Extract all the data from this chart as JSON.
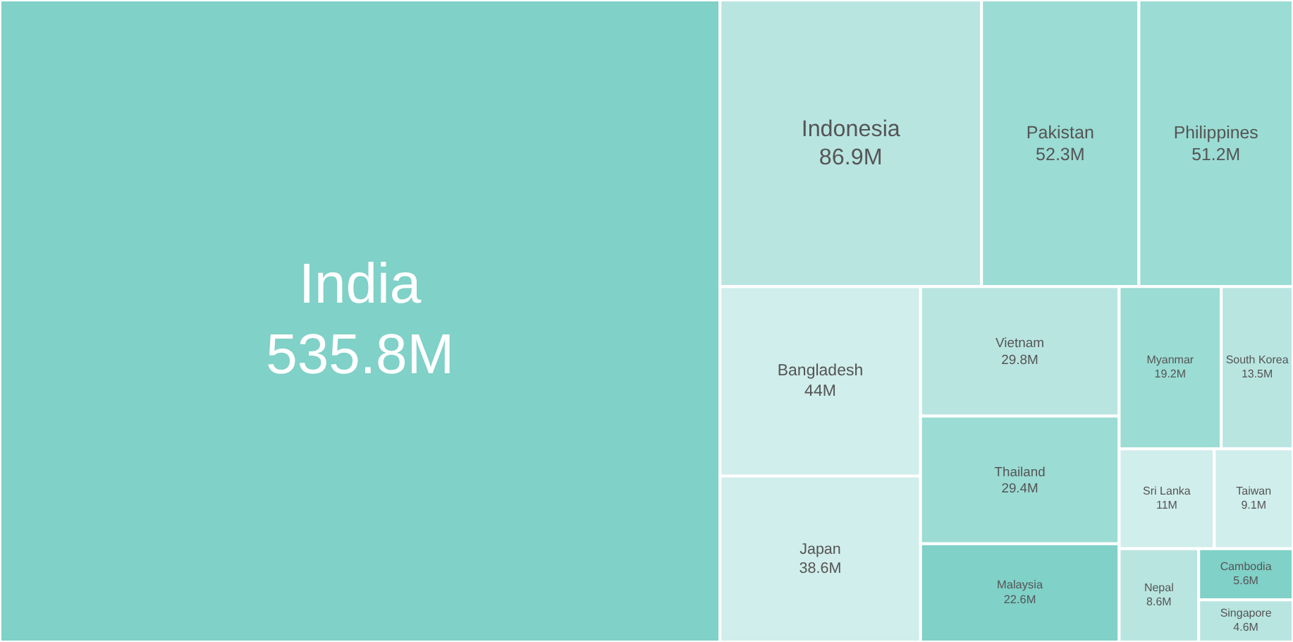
{
  "chart_data": {
    "type": "other",
    "categories": [
      "India",
      "Indonesia",
      "Pakistan",
      "Philippines",
      "Bangladesh",
      "Japan",
      "Vietnam",
      "Thailand",
      "Malaysia",
      "Myanmar",
      "South Korea",
      "Sri Lanka",
      "Taiwan",
      "Nepal",
      "Cambodia",
      "Singapore"
    ],
    "values": [
      535.8,
      86.9,
      52.3,
      51.2,
      44,
      38.6,
      29.8,
      29.4,
      22.6,
      19.2,
      13.5,
      11,
      9.1,
      8.6,
      5.6,
      4.6
    ],
    "value_labels": [
      "535.8M",
      "86.9M",
      "52.3M",
      "51.2M",
      "44M",
      "38.6M",
      "29.8M",
      "29.4M",
      "22.6M",
      "19.2M",
      "13.5M",
      "11M",
      "9.1M",
      "8.6M",
      "5.6M",
      "4.6M"
    ],
    "colors": [
      "#80d1c8",
      "#b9e5e1",
      "#9bdcd4",
      "#9bdcd4",
      "#d0eeeb",
      "#d0eeeb",
      "#b9e5e1",
      "#9bdcd4",
      "#80d1c8",
      "#9bdcd4",
      "#b9e5e1",
      "#d0eeeb",
      "#d0eeeb",
      "#b9e5e1",
      "#80d1c8",
      "#b9e5e1"
    ]
  }
}
